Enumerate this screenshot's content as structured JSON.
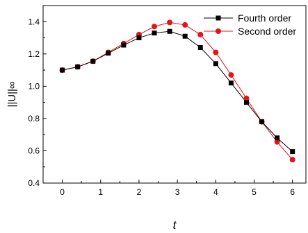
{
  "chart_data": {
    "type": "line",
    "xlabel": "t",
    "ylabel": "||U||∞",
    "xlim": [
      -0.5,
      6.35
    ],
    "ylim": [
      0.4,
      1.5
    ],
    "xticks": [
      0,
      1,
      2,
      3,
      4,
      5,
      6
    ],
    "yticks": [
      0.4,
      0.6,
      0.8,
      1.0,
      1.2,
      1.4
    ],
    "ytick_labels": [
      "0.4",
      "0.6",
      "0.8",
      "1.0",
      "1.2",
      "1.4"
    ],
    "legend_position": "top-right",
    "grid": false,
    "series": [
      {
        "name": "Fourth order",
        "marker": "square",
        "color": "#000000",
        "x": [
          0,
          0.4,
          0.8,
          1.2,
          1.6,
          2.0,
          2.4,
          2.8,
          3.2,
          3.6,
          4.0,
          4.4,
          4.8,
          5.2,
          5.6,
          6.0
        ],
        "y": [
          1.1,
          1.12,
          1.155,
          1.205,
          1.255,
          1.3,
          1.33,
          1.34,
          1.31,
          1.24,
          1.14,
          1.02,
          0.9,
          0.78,
          0.68,
          0.595
        ]
      },
      {
        "name": "Second order",
        "marker": "circle",
        "color": "#e8121a",
        "x": [
          0,
          0.4,
          0.8,
          1.2,
          1.6,
          2.0,
          2.4,
          2.8,
          3.2,
          3.6,
          4.0,
          4.4,
          4.8,
          5.2,
          5.6,
          6.0
        ],
        "y": [
          1.1,
          1.12,
          1.155,
          1.21,
          1.265,
          1.32,
          1.37,
          1.395,
          1.38,
          1.32,
          1.21,
          1.07,
          0.925,
          0.78,
          0.655,
          0.545
        ]
      }
    ]
  }
}
